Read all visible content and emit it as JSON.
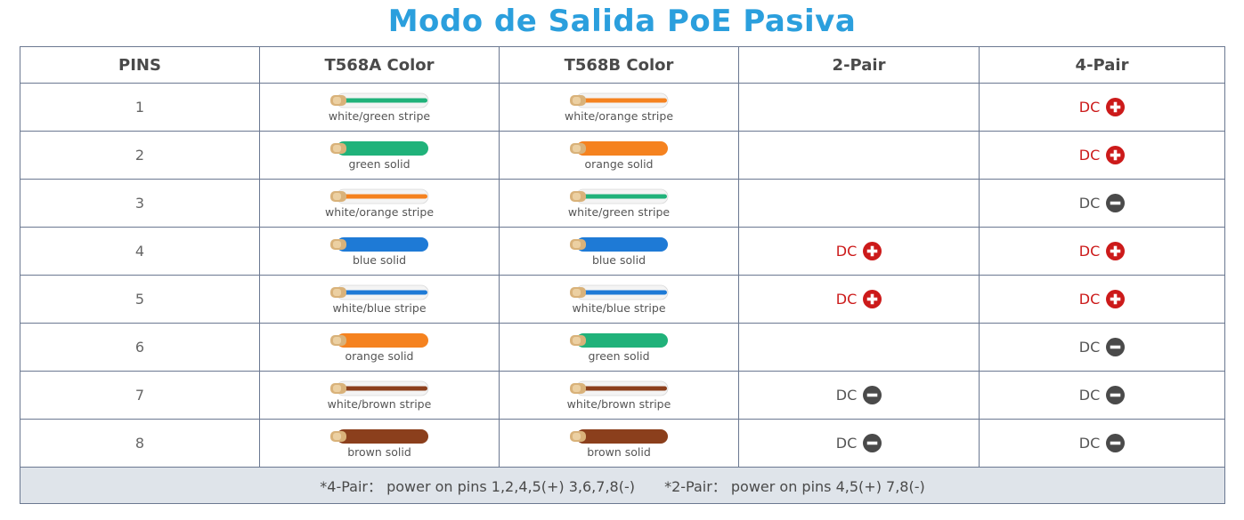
{
  "title": "Modo de Salida PoE Pasiva",
  "colors": {
    "title": "#2b9fdd",
    "plus": "#cc1a1a",
    "minus": "#555555",
    "border": "#6b7891",
    "footer_bg": "#dfe4ea"
  },
  "headers": [
    "PINS",
    "T568A Color",
    "T568B Color",
    "2-Pair",
    "4-Pair"
  ],
  "rows": [
    {
      "pin": "1",
      "a": {
        "label": "white/green stripe",
        "color": "#20b27a",
        "stripe": true
      },
      "b": {
        "label": "white/orange stripe",
        "color": "#f5821f",
        "stripe": true
      },
      "p2": {
        "text": "",
        "sign": ""
      },
      "p4": {
        "text": "DC",
        "sign": "plus"
      }
    },
    {
      "pin": "2",
      "a": {
        "label": "green solid",
        "color": "#20b27a",
        "stripe": false
      },
      "b": {
        "label": "orange solid",
        "color": "#f5821f",
        "stripe": false
      },
      "p2": {
        "text": "",
        "sign": ""
      },
      "p4": {
        "text": "DC",
        "sign": "plus"
      }
    },
    {
      "pin": "3",
      "a": {
        "label": "white/orange stripe",
        "color": "#f5821f",
        "stripe": true
      },
      "b": {
        "label": "white/green stripe",
        "color": "#20b27a",
        "stripe": true
      },
      "p2": {
        "text": "",
        "sign": ""
      },
      "p4": {
        "text": "DC",
        "sign": "minus"
      }
    },
    {
      "pin": "4",
      "a": {
        "label": "blue solid",
        "color": "#1e7ad6",
        "stripe": false
      },
      "b": {
        "label": "blue solid",
        "color": "#1e7ad6",
        "stripe": false
      },
      "p2": {
        "text": "DC",
        "sign": "plus"
      },
      "p4": {
        "text": "DC",
        "sign": "plus"
      }
    },
    {
      "pin": "5",
      "a": {
        "label": "white/blue stripe",
        "color": "#1e7ad6",
        "stripe": true
      },
      "b": {
        "label": "white/blue stripe",
        "color": "#1e7ad6",
        "stripe": true
      },
      "p2": {
        "text": "DC",
        "sign": "plus"
      },
      "p4": {
        "text": "DC",
        "sign": "plus"
      }
    },
    {
      "pin": "6",
      "a": {
        "label": "orange solid",
        "color": "#f5821f",
        "stripe": false
      },
      "b": {
        "label": "green solid",
        "color": "#20b27a",
        "stripe": false
      },
      "p2": {
        "text": "",
        "sign": ""
      },
      "p4": {
        "text": "DC",
        "sign": "minus"
      }
    },
    {
      "pin": "7",
      "a": {
        "label": "white/brown stripe",
        "color": "#8b3f1c",
        "stripe": true
      },
      "b": {
        "label": "white/brown stripe",
        "color": "#8b3f1c",
        "stripe": true
      },
      "p2": {
        "text": "DC",
        "sign": "minus"
      },
      "p4": {
        "text": "DC",
        "sign": "minus"
      }
    },
    {
      "pin": "8",
      "a": {
        "label": "brown solid",
        "color": "#8b3f1c",
        "stripe": false
      },
      "b": {
        "label": "brown solid",
        "color": "#8b3f1c",
        "stripe": false
      },
      "p2": {
        "text": "DC",
        "sign": "minus"
      },
      "p4": {
        "text": "DC",
        "sign": "minus"
      }
    }
  ],
  "footer": {
    "four_pair": "*4-Pair：  power on pins 1,2,4,5(+) 3,6,7,8(-)",
    "two_pair": "*2-Pair：  power on pins 4,5(+) 7,8(-)"
  }
}
